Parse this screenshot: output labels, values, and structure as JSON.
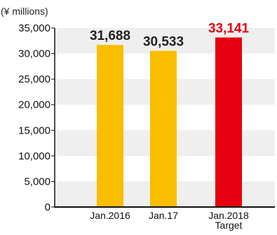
{
  "chart_data": {
    "type": "bar",
    "unit_label": "(¥ millions)",
    "title": "",
    "xlabel": "",
    "ylabel": "",
    "categories": [
      [
        "Jan.2016"
      ],
      [
        "Jan.17"
      ],
      [
        "Jan.2018",
        "Target"
      ]
    ],
    "values": [
      31688,
      30533,
      33141
    ],
    "data_labels": [
      "31,688",
      "30,533",
      "33,141"
    ],
    "ylim": [
      0,
      35000
    ],
    "yticks": [
      0,
      5000,
      10000,
      15000,
      20000,
      25000,
      30000,
      35000
    ],
    "ytick_labels": [
      "0",
      "5,000",
      "10,000",
      "15,000",
      "20,000",
      "25,000",
      "30,000",
      "35,000"
    ],
    "bar_colors": [
      "#F9BE00",
      "#F9BE00",
      "#E60012"
    ],
    "data_label_colors": [
      "#222222",
      "#222222",
      "#E60012"
    ],
    "band_color": "#EFEFEF",
    "axis_color": "#111111",
    "grid": "alternating horizontal bands"
  }
}
